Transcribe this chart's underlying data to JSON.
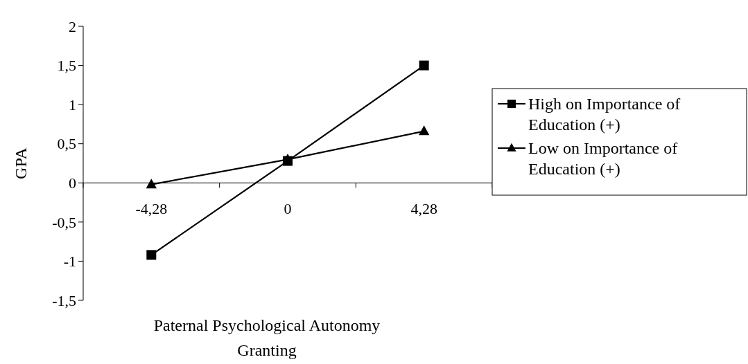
{
  "chart_data": {
    "type": "line",
    "xlabel": "Paternal Psychological Autonomy Granting",
    "ylabel": "GPA",
    "categories": [
      "-4,28",
      "0",
      "4,28"
    ],
    "series": [
      {
        "name": "High on Importance of Education (+)",
        "color": "#000000",
        "marker": "square",
        "values": [
          -0.92,
          0.28,
          1.5
        ]
      },
      {
        "name": "Low on Importance of Education (+)",
        "color": "#000000",
        "marker": "triangle",
        "values": [
          -0.02,
          0.3,
          0.66
        ]
      }
    ],
    "ylim": [
      -1.5,
      2
    ],
    "yticks": [
      {
        "value": -1.5,
        "label": "-1,5"
      },
      {
        "value": -1,
        "label": "-1"
      },
      {
        "value": -0.5,
        "label": "-0,5"
      },
      {
        "value": 0,
        "label": "0"
      },
      {
        "value": 0.5,
        "label": "0,5"
      },
      {
        "value": 1,
        "label": "1"
      },
      {
        "value": 1.5,
        "label": "1,5"
      },
      {
        "value": 2,
        "label": "2"
      }
    ],
    "legend": "right",
    "grid": false
  }
}
